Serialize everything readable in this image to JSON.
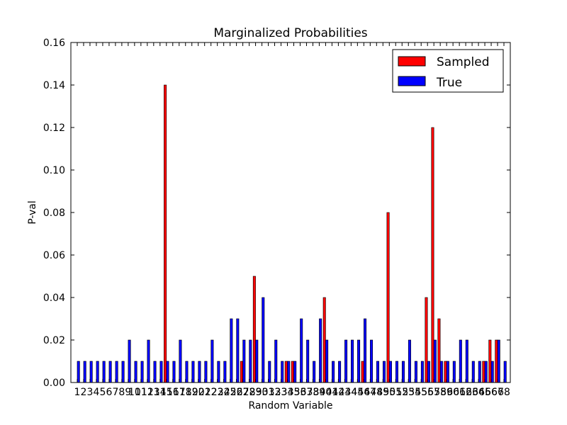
{
  "chart_data": {
    "type": "bar",
    "title": "Marginalized Probabilities",
    "xlabel": "Random Variable",
    "ylabel": "P-val",
    "ylim": [
      0,
      0.16
    ],
    "yticks": [
      "0.00",
      "0.02",
      "0.04",
      "0.06",
      "0.08",
      "0.10",
      "0.12",
      "0.14",
      "0.16"
    ],
    "categories": [
      "1",
      "2",
      "3",
      "4",
      "5",
      "6",
      "7",
      "8",
      "9",
      "10",
      "11",
      "12",
      "13",
      "14",
      "15",
      "16",
      "17",
      "18",
      "19",
      "20",
      "21",
      "22",
      "23",
      "24",
      "25",
      "26",
      "27",
      "28",
      "29",
      "30",
      "31",
      "32",
      "33",
      "34",
      "35",
      "36",
      "37",
      "38",
      "39",
      "40",
      "41",
      "42",
      "43",
      "44",
      "45",
      "46",
      "47",
      "48",
      "49",
      "50",
      "51",
      "52",
      "53",
      "54",
      "55",
      "56",
      "57",
      "58",
      "59",
      "60",
      "61",
      "62",
      "63",
      "64",
      "65",
      "66",
      "67",
      "68"
    ],
    "legend_position": "top-right",
    "series": [
      {
        "name": "Sampled",
        "color": "#ff0000",
        "values": [
          0,
          0,
          0,
          0,
          0,
          0,
          0,
          0,
          0,
          0,
          0,
          0,
          0,
          0,
          0.14,
          0,
          0,
          0,
          0,
          0,
          0,
          0,
          0,
          0,
          0,
          0,
          0.01,
          0,
          0.05,
          0,
          0,
          0,
          0,
          0.01,
          0.01,
          0,
          0,
          0,
          0,
          0.04,
          0,
          0,
          0,
          0,
          0,
          0.01,
          0,
          0,
          0,
          0.08,
          0,
          0,
          0,
          0,
          0,
          0.04,
          0.12,
          0.03,
          0.01,
          0,
          0,
          0,
          0,
          0,
          0.01,
          0.02,
          0.02,
          0
        ]
      },
      {
        "name": "True",
        "color": "#0000ff",
        "values": [
          0.01,
          0.01,
          0.01,
          0.01,
          0.01,
          0.01,
          0.01,
          0.01,
          0.02,
          0.01,
          0.01,
          0.02,
          0.01,
          0.01,
          0.01,
          0.01,
          0.02,
          0.01,
          0.01,
          0.01,
          0.01,
          0.02,
          0.01,
          0.01,
          0.03,
          0.03,
          0.02,
          0.02,
          0.02,
          0.04,
          0.01,
          0.02,
          0.01,
          0.01,
          0.01,
          0.03,
          0.02,
          0.01,
          0.03,
          0.02,
          0.01,
          0.01,
          0.02,
          0.02,
          0.02,
          0.03,
          0.02,
          0.01,
          0.01,
          0.01,
          0.01,
          0.01,
          0.02,
          0.01,
          0.01,
          0.01,
          0.02,
          0.01,
          0.01,
          0.01,
          0.02,
          0.02,
          0.01,
          0.01,
          0.01,
          0.01,
          0.02,
          0.01
        ]
      }
    ]
  }
}
